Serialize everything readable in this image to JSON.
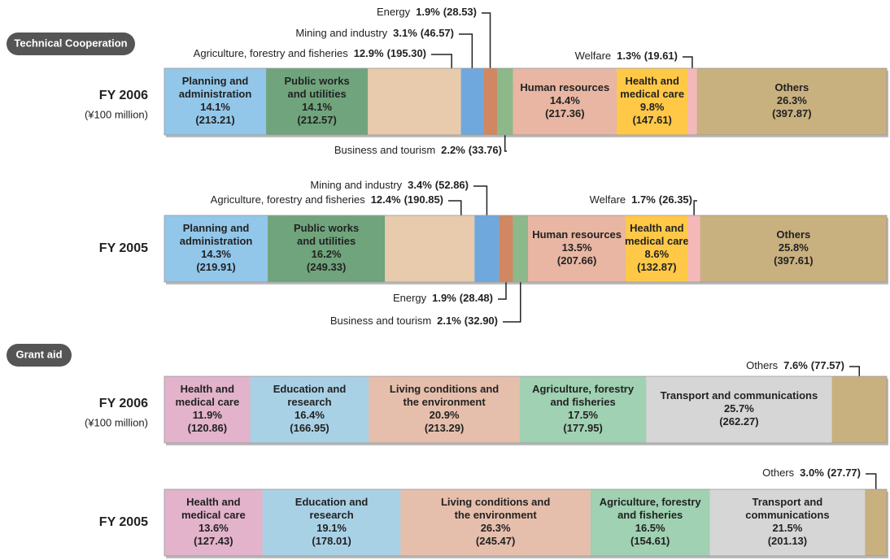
{
  "chart_data": [
    {
      "type": "stacked-bar-100",
      "group": "Technical Cooperation",
      "bars": [
        {
          "label": "FY 2006",
          "unit": "(¥100 million)",
          "segments": [
            {
              "name": [
                "Planning and",
                "administration"
              ],
              "percent": 14.1,
              "percent_label": "14.1%",
              "amount": 213.21,
              "amount_label": "(213.21)",
              "color": "#92c7ea"
            },
            {
              "name": [
                "Public works",
                "and utilities"
              ],
              "percent": 14.1,
              "percent_label": "14.1%",
              "amount": 212.57,
              "amount_label": "(212.57)",
              "color": "#70a47c"
            },
            {
              "name": [
                "Agriculture, forestry and fisheries"
              ],
              "percent": 12.9,
              "percent_label": "12.9%",
              "amount": 195.3,
              "amount_label": "(195.30)",
              "color": "#e8cbac",
              "callout": "above"
            },
            {
              "name": [
                "Mining and industry"
              ],
              "percent": 3.1,
              "percent_label": "3.1%",
              "amount": 46.57,
              "amount_label": "(46.57)",
              "color": "#6fa8dc",
              "callout": "above"
            },
            {
              "name": [
                "Energy"
              ],
              "percent": 1.9,
              "percent_label": "1.9%",
              "amount": 28.53,
              "amount_label": "(28.53)",
              "color": "#d08762",
              "callout": "above"
            },
            {
              "name": [
                "Business and tourism"
              ],
              "percent": 2.2,
              "percent_label": "2.2%",
              "amount": 33.76,
              "amount_label": "(33.76)",
              "color": "#8db98a",
              "callout": "below"
            },
            {
              "name": [
                "Human resources"
              ],
              "percent": 14.4,
              "percent_label": "14.4%",
              "amount": 217.36,
              "amount_label": "(217.36)",
              "color": "#e8b6a2"
            },
            {
              "name": [
                "Health and",
                "medical care"
              ],
              "percent": 9.8,
              "percent_label": "9.8%",
              "amount": 147.61,
              "amount_label": "(147.61)",
              "color": "#ffc947"
            },
            {
              "name": [
                "Welfare"
              ],
              "percent": 1.3,
              "percent_label": "1.3%",
              "amount": 19.61,
              "amount_label": "(19.61)",
              "color": "#f5b8b8",
              "callout": "above"
            },
            {
              "name": [
                "Others"
              ],
              "percent": 26.3,
              "percent_label": "26.3%",
              "amount": 397.87,
              "amount_label": "(397.87)",
              "color": "#c9b07f"
            }
          ]
        },
        {
          "label": "FY 2005",
          "segments": [
            {
              "name": [
                "Planning and",
                "administration"
              ],
              "percent": 14.3,
              "percent_label": "14.3%",
              "amount": 219.91,
              "amount_label": "(219.91)",
              "color": "#92c7ea"
            },
            {
              "name": [
                "Public works",
                "and utilities"
              ],
              "percent": 16.2,
              "percent_label": "16.2%",
              "amount": 249.33,
              "amount_label": "(249.33)",
              "color": "#70a47c"
            },
            {
              "name": [
                "Agriculture, forestry and fisheries"
              ],
              "percent": 12.4,
              "percent_label": "12.4%",
              "amount": 190.85,
              "amount_label": "(190.85)",
              "color": "#e8cbac",
              "callout": "above"
            },
            {
              "name": [
                "Mining and industry"
              ],
              "percent": 3.4,
              "percent_label": "3.4%",
              "amount": 52.86,
              "amount_label": "(52.86)",
              "color": "#6fa8dc",
              "callout": "above"
            },
            {
              "name": [
                "Energy"
              ],
              "percent": 1.9,
              "percent_label": "1.9%",
              "amount": 28.48,
              "amount_label": "(28.48)",
              "color": "#d08762",
              "callout": "below"
            },
            {
              "name": [
                "Business and tourism"
              ],
              "percent": 2.1,
              "percent_label": "2.1%",
              "amount": 32.9,
              "amount_label": "(32.90)",
              "color": "#8db98a",
              "callout": "below"
            },
            {
              "name": [
                "Human resources"
              ],
              "percent": 13.5,
              "percent_label": "13.5%",
              "amount": 207.66,
              "amount_label": "(207.66)",
              "color": "#e8b6a2"
            },
            {
              "name": [
                "Health and",
                "medical care"
              ],
              "percent": 8.6,
              "percent_label": "8.6%",
              "amount": 132.87,
              "amount_label": "(132.87)",
              "color": "#ffc947"
            },
            {
              "name": [
                "Welfare"
              ],
              "percent": 1.7,
              "percent_label": "1.7%",
              "amount": 26.35,
              "amount_label": "(26.35)",
              "color": "#f5b8b8",
              "callout": "above"
            },
            {
              "name": [
                "Others"
              ],
              "percent": 25.8,
              "percent_label": "25.8%",
              "amount": 397.61,
              "amount_label": "(397.61)",
              "color": "#c9b07f"
            }
          ]
        }
      ]
    },
    {
      "type": "stacked-bar-100",
      "group": "Grant aid",
      "bars": [
        {
          "label": "FY 2006",
          "unit": "(¥100 million)",
          "segments": [
            {
              "name": [
                "Health and",
                "medical care"
              ],
              "percent": 11.9,
              "percent_label": "11.9%",
              "amount": 120.86,
              "amount_label": "(120.86)",
              "color": "#e2b3cb"
            },
            {
              "name": [
                "Education and",
                "research"
              ],
              "percent": 16.4,
              "percent_label": "16.4%",
              "amount": 166.95,
              "amount_label": "(166.95)",
              "color": "#a9d1e6"
            },
            {
              "name": [
                "Living conditions and",
                "the environment"
              ],
              "percent": 20.9,
              "percent_label": "20.9%",
              "amount": 213.29,
              "amount_label": "(213.29)",
              "color": "#e6bfac"
            },
            {
              "name": [
                "Agriculture, forestry",
                "and fisheries"
              ],
              "percent": 17.5,
              "percent_label": "17.5%",
              "amount": 177.95,
              "amount_label": "(177.95)",
              "color": "#9fd1b2"
            },
            {
              "name": [
                "Transport and communications"
              ],
              "percent": 25.7,
              "percent_label": "25.7%",
              "amount": 262.27,
              "amount_label": "(262.27)",
              "color": "#d6d6d6"
            },
            {
              "name": [
                "Others"
              ],
              "percent": 7.6,
              "percent_label": "7.6%",
              "amount": 77.57,
              "amount_label": "(77.57)",
              "color": "#c9b07f",
              "callout": "above"
            }
          ]
        },
        {
          "label": "FY 2005",
          "segments": [
            {
              "name": [
                "Health and",
                "medical care"
              ],
              "percent": 13.6,
              "percent_label": "13.6%",
              "amount": 127.43,
              "amount_label": "(127.43)",
              "color": "#e2b3cb"
            },
            {
              "name": [
                "Education and",
                "research"
              ],
              "percent": 19.1,
              "percent_label": "19.1%",
              "amount": 178.01,
              "amount_label": "(178.01)",
              "color": "#a9d1e6"
            },
            {
              "name": [
                "Living conditions and",
                "the environment"
              ],
              "percent": 26.3,
              "percent_label": "26.3%",
              "amount": 245.47,
              "amount_label": "(245.47)",
              "color": "#e6bfac"
            },
            {
              "name": [
                "Agriculture, forestry",
                "and fisheries"
              ],
              "percent": 16.5,
              "percent_label": "16.5%",
              "amount": 154.61,
              "amount_label": "(154.61)",
              "color": "#9fd1b2"
            },
            {
              "name": [
                "Transport and",
                "communications"
              ],
              "percent": 21.5,
              "percent_label": "21.5%",
              "amount": 201.13,
              "amount_label": "(201.13)",
              "color": "#d6d6d6"
            },
            {
              "name": [
                "Others"
              ],
              "percent": 3,
              "percent_label": "3.0%",
              "amount": 27.77,
              "amount_label": "(27.77)",
              "color": "#c9b07f",
              "callout": "above"
            }
          ]
        }
      ]
    }
  ]
}
